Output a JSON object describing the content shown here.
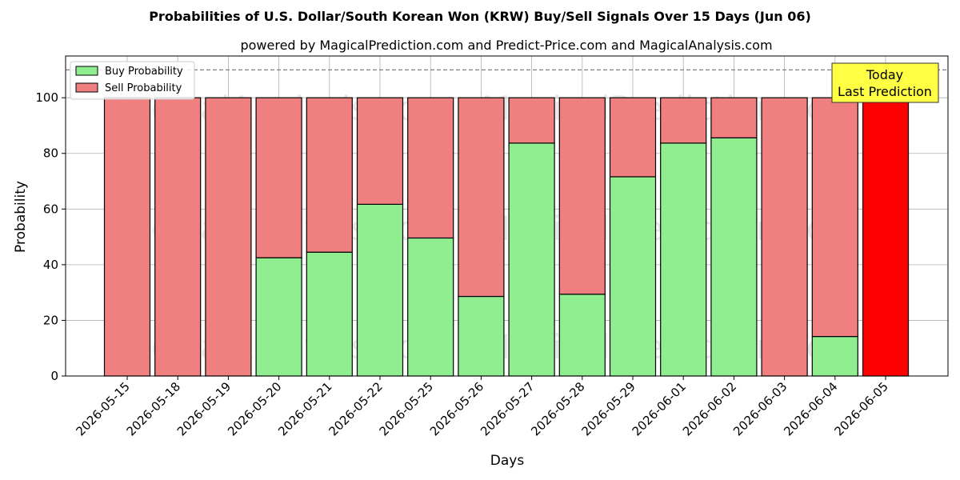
{
  "chart_data": {
    "type": "bar",
    "stacked": true,
    "title": "Probabilities of U.S. Dollar/South Korean Won (KRW) Buy/Sell Signals Over 15 Days (Jun 06)",
    "subtitle": "powered by MagicalPrediction.com and Predict-Price.com and MagicalAnalysis.com",
    "xlabel": "Days",
    "ylabel": "Probability",
    "ylim": [
      0,
      115
    ],
    "yticks": [
      0,
      20,
      40,
      60,
      80,
      100
    ],
    "grid": true,
    "legend_position": "top-left",
    "reference_line": 110,
    "categories": [
      "2026-05-15",
      "2026-05-18",
      "2026-05-19",
      "2026-05-20",
      "2026-05-21",
      "2026-05-22",
      "2026-05-25",
      "2026-05-26",
      "2026-05-27",
      "2026-05-28",
      "2026-05-29",
      "2026-06-01",
      "2026-06-02",
      "2026-06-03",
      "2026-06-04",
      "2026-06-05"
    ],
    "series": [
      {
        "name": "Buy Probability",
        "color": "#90ee90",
        "values": [
          0,
          0,
          0,
          42.5,
          44.5,
          61.7,
          49.6,
          28.6,
          83.7,
          29.4,
          71.6,
          83.7,
          85.6,
          0,
          14.2,
          0
        ]
      },
      {
        "name": "Sell Probability",
        "color": "#f08080",
        "values": [
          100,
          100,
          100,
          57.5,
          55.5,
          38.3,
          50.4,
          71.4,
          16.3,
          70.6,
          28.4,
          16.3,
          14.4,
          100,
          85.8,
          100
        ]
      }
    ],
    "highlight": {
      "index": 15,
      "color": "#ff0000"
    },
    "annotation": {
      "lines": [
        "Today",
        "Last Prediction"
      ],
      "background": "#ffff44"
    },
    "watermarks": [
      "MagicalAnalysis.com",
      "MagicalPrediction.com"
    ]
  }
}
